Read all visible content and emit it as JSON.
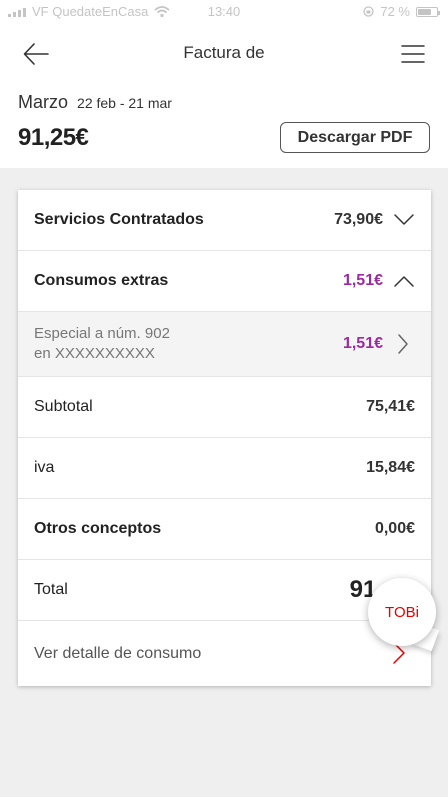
{
  "status_bar": {
    "carrier": "VF QuedateEnCasa",
    "time": "13:40",
    "battery": "72 %",
    "battery_level": 0.72
  },
  "header": {
    "title": "Factura de",
    "month": "Marzo",
    "period": "22 feb - 21 mar",
    "amount": "91,25€",
    "download_label": "Descargar PDF"
  },
  "bill": {
    "services": {
      "label": "Servicios Contratados",
      "value": "73,90€"
    },
    "extras": {
      "label": "Consumos extras",
      "value": "1,51€"
    },
    "extra_item": {
      "line1": "Especial a núm. 902",
      "line2": "en XXXXXXXXXX",
      "value": "1,51€"
    },
    "subtotal": {
      "label": "Subtotal",
      "value": "75,41€"
    },
    "iva": {
      "label": "iva",
      "value": "15,84€"
    },
    "others": {
      "label": "Otros conceptos",
      "value": "0,00€"
    },
    "total": {
      "label": "Total",
      "value": "91,"
    },
    "detail": {
      "label": "Ver detalle de consumo"
    }
  },
  "assistant": {
    "label": "TOBi"
  },
  "colors": {
    "accent": "#9c2aa0",
    "brand_red": "#e60000"
  },
  "icons": [
    "back-arrow-icon",
    "hamburger-menu-icon",
    "wifi-icon",
    "chevron-down-icon",
    "chevron-up-icon",
    "chevron-right-icon"
  ]
}
